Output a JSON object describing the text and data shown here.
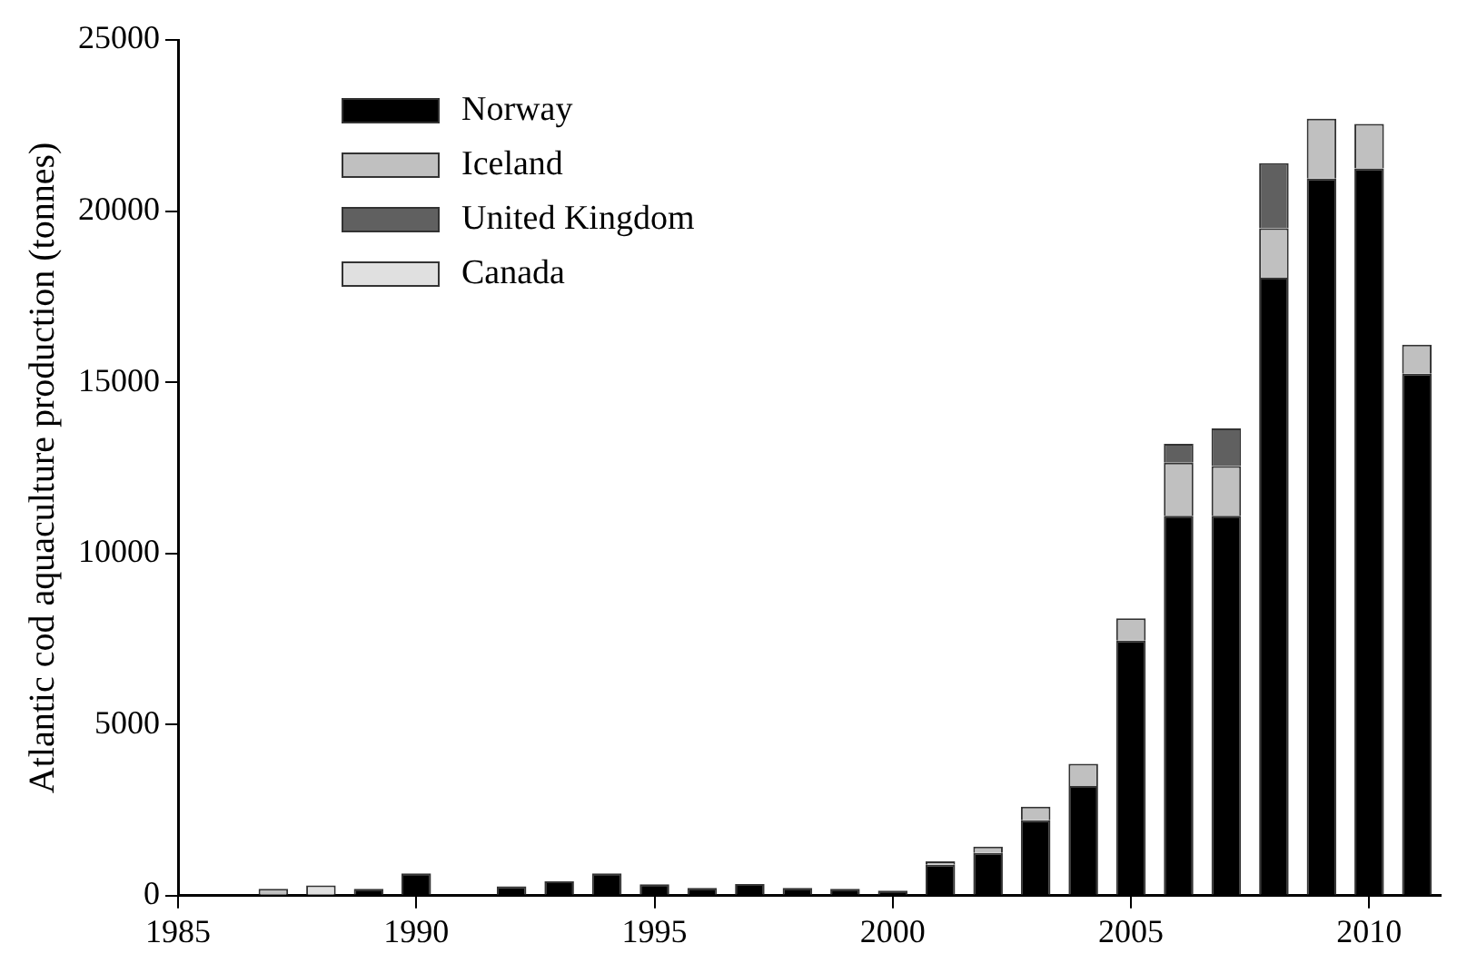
{
  "chart_data": {
    "type": "bar",
    "stacked": true,
    "ylabel": "Atlantic cod aquaculture production (tonnes)",
    "x": [
      1987,
      1988,
      1989,
      1990,
      1991,
      1992,
      1993,
      1994,
      1995,
      1996,
      1997,
      1998,
      1999,
      2000,
      2001,
      2002,
      2003,
      2004,
      2005,
      2006,
      2007,
      2008,
      2009,
      2010,
      2011
    ],
    "series": [
      {
        "name": "Norway",
        "color": "#000000",
        "values": [
          null,
          null,
          200,
          650,
          null,
          270,
          420,
          650,
          330,
          230,
          340,
          230,
          200,
          150,
          900,
          1250,
          2200,
          3200,
          7450,
          11100,
          11100,
          18050,
          20950,
          21250,
          15250
        ]
      },
      {
        "name": "Iceland",
        "color": "#c0c0c0",
        "values": [
          200,
          null,
          null,
          null,
          null,
          null,
          null,
          null,
          null,
          null,
          null,
          null,
          null,
          null,
          100,
          180,
          400,
          650,
          650,
          1550,
          1450,
          1450,
          1750,
          1300,
          850
        ]
      },
      {
        "name": "United Kingdom",
        "color": "#606060",
        "values": [
          null,
          null,
          null,
          null,
          null,
          null,
          null,
          null,
          null,
          null,
          null,
          null,
          null,
          null,
          null,
          null,
          null,
          null,
          null,
          550,
          1100,
          1900,
          null,
          null,
          null
        ]
      },
      {
        "name": "Canada",
        "color": "#e0e0e0",
        "values": [
          null,
          300,
          null,
          null,
          null,
          null,
          null,
          null,
          null,
          null,
          null,
          null,
          null,
          null,
          null,
          null,
          null,
          null,
          null,
          null,
          null,
          null,
          null,
          null,
          null
        ]
      }
    ],
    "xlim": [
      1985,
      2011.5
    ],
    "xticks": [
      1985,
      1990,
      1995,
      2000,
      2005,
      2010
    ],
    "ylim": [
      0,
      25000
    ],
    "yticks": [
      0,
      5000,
      10000,
      15000,
      20000,
      25000
    ],
    "grid": false,
    "legend": "top left"
  }
}
